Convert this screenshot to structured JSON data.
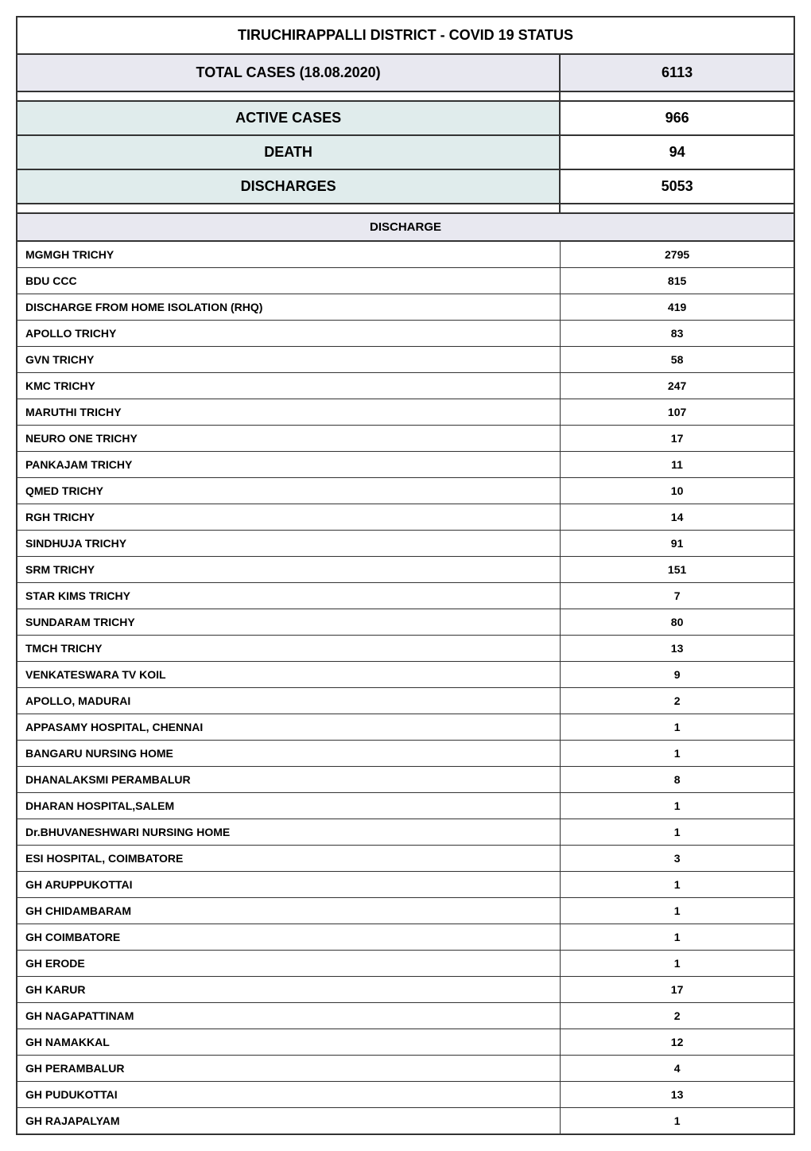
{
  "title": "TIRUCHIRAPPALLI  DISTRICT - COVID 19 STATUS",
  "totalCases": {
    "label": "TOTAL CASES (18.08.2020)",
    "value": "6113"
  },
  "summary": [
    {
      "label": "ACTIVE CASES",
      "value": "966"
    },
    {
      "label": "DEATH",
      "value": "94"
    },
    {
      "label": "DISCHARGES",
      "value": "5053"
    }
  ],
  "dischargeHeader": "DISCHARGE",
  "dischargeRows": [
    {
      "label": "MGMGH TRICHY",
      "value": "2795"
    },
    {
      "label": "BDU CCC",
      "value": "815"
    },
    {
      "label": "DISCHARGE FROM HOME ISOLATION (RHQ)",
      "value": "419"
    },
    {
      "label": "APOLLO TRICHY",
      "value": "83"
    },
    {
      "label": "GVN TRICHY",
      "value": "58"
    },
    {
      "label": "KMC TRICHY",
      "value": "247"
    },
    {
      "label": "MARUTHI TRICHY",
      "value": "107"
    },
    {
      "label": "NEURO ONE TRICHY",
      "value": "17"
    },
    {
      "label": "PANKAJAM TRICHY",
      "value": "11"
    },
    {
      "label": "QMED TRICHY",
      "value": "10"
    },
    {
      "label": "RGH TRICHY",
      "value": "14"
    },
    {
      "label": "SINDHUJA TRICHY",
      "value": "91"
    },
    {
      "label": "SRM TRICHY",
      "value": "151"
    },
    {
      "label": "STAR KIMS TRICHY",
      "value": "7"
    },
    {
      "label": "SUNDARAM TRICHY",
      "value": "80"
    },
    {
      "label": "TMCH TRICHY",
      "value": "13"
    },
    {
      "label": "VENKATESWARA TV KOIL",
      "value": "9"
    },
    {
      "label": "APOLLO, MADURAI",
      "value": "2"
    },
    {
      "label": "APPASAMY HOSPITAL, CHENNAI",
      "value": "1"
    },
    {
      "label": "BANGARU NURSING HOME",
      "value": "1"
    },
    {
      "label": "DHANALAKSMI  PERAMBALUR",
      "value": "8"
    },
    {
      "label": "DHARAN HOSPITAL,SALEM",
      "value": "1"
    },
    {
      "label": "Dr.BHUVANESHWARI NURSING HOME",
      "value": "1"
    },
    {
      "label": "ESI HOSPITAL, COIMBATORE",
      "value": "3"
    },
    {
      "label": "GH ARUPPUKOTTAI",
      "value": "1"
    },
    {
      "label": "GH CHIDAMBARAM",
      "value": "1"
    },
    {
      "label": "GH COIMBATORE",
      "value": "1"
    },
    {
      "label": "GH ERODE",
      "value": "1"
    },
    {
      "label": "GH KARUR",
      "value": "17"
    },
    {
      "label": "GH NAGAPATTINAM",
      "value": "2"
    },
    {
      "label": "GH NAMAKKAL",
      "value": "12"
    },
    {
      "label": "GH PERAMBALUR",
      "value": "4"
    },
    {
      "label": "GH PUDUKOTTAI",
      "value": "13"
    },
    {
      "label": "GH RAJAPALYAM",
      "value": "1"
    }
  ],
  "styling": {
    "titleBg": "#ffffff",
    "totalBg": "#e8e8f0",
    "summaryLabelBg": "#e0ecec",
    "sectionHeaderBg": "#e8e8f0",
    "borderColor": "#333333",
    "titleFontSize": 18,
    "summaryFontSize": 18,
    "dataFontSize": 14,
    "labelColumnWidth": "70%",
    "valueColumnWidth": "30%"
  }
}
